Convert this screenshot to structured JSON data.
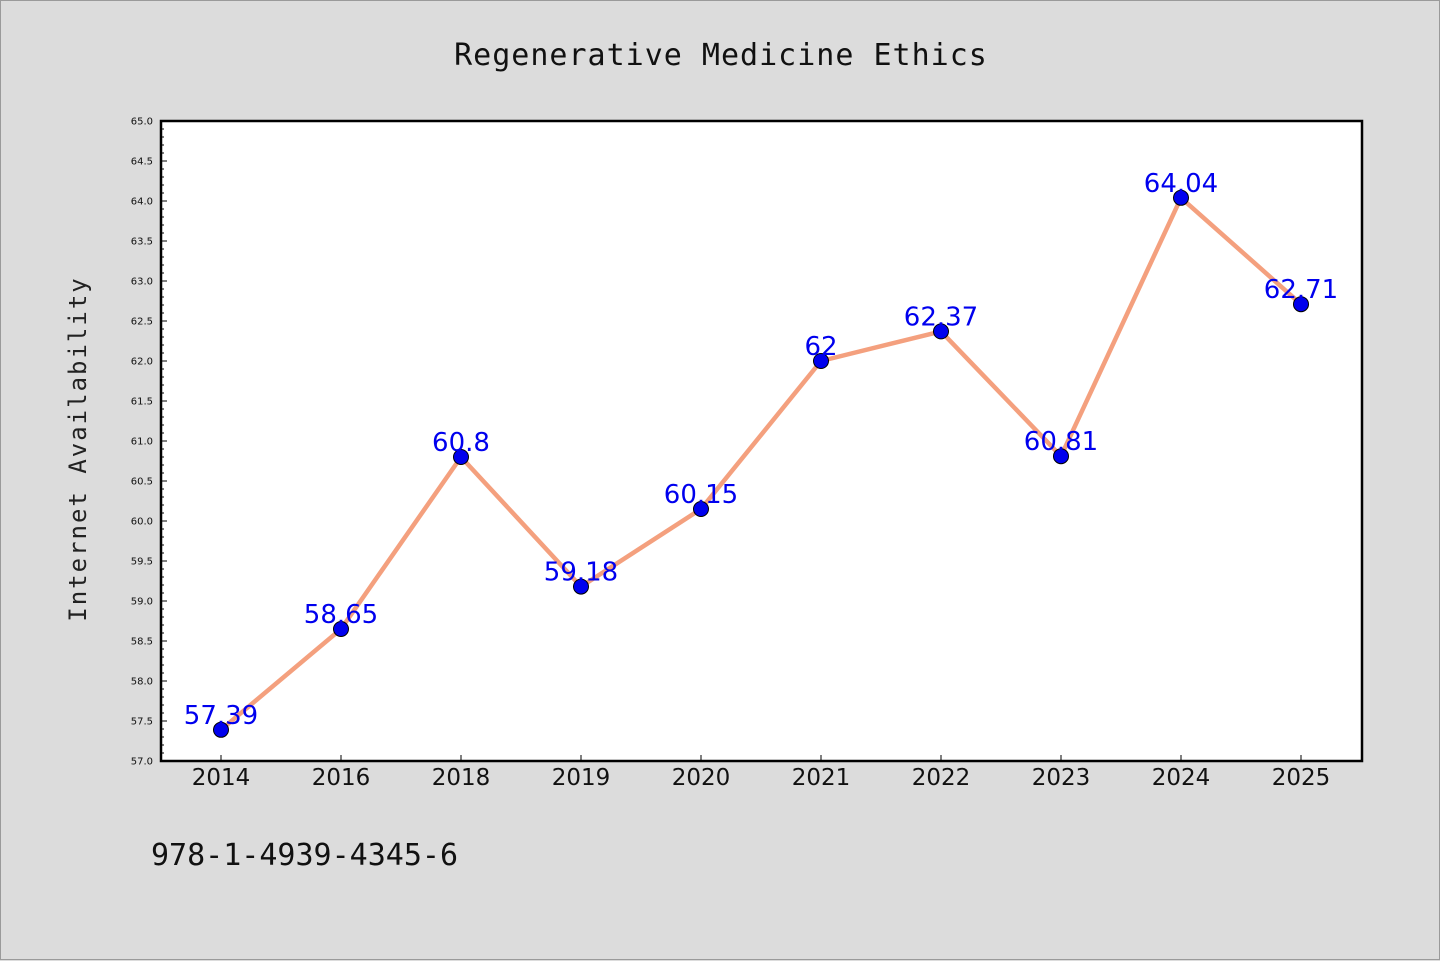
{
  "chart_data": {
    "type": "line",
    "title": "Regenerative Medicine Ethics",
    "xlabel": "",
    "ylabel": "Internet Availability",
    "categories": [
      "2014",
      "2016",
      "2018",
      "2019",
      "2020",
      "2021",
      "2022",
      "2023",
      "2024",
      "2025"
    ],
    "series": [
      {
        "values": [
          57.39,
          58.65,
          60.8,
          59.18,
          60.15,
          62,
          62.37,
          60.81,
          64.04,
          62.71
        ],
        "data_labels": [
          "57.39",
          "58.65",
          "60.8",
          "59.18",
          "60.15",
          "62",
          "62.37",
          "60.81",
          "64.04",
          "62.71"
        ],
        "line_color": "#f4a07e",
        "marker_color": "#0000ee"
      }
    ],
    "ylim": [
      57.0,
      65.0
    ],
    "yticks": [
      "57.0",
      "57.5",
      "58.0",
      "58.5",
      "59.0",
      "59.5",
      "60.0",
      "60.5",
      "61.0",
      "61.5",
      "62.0",
      "62.5",
      "63.0",
      "63.5",
      "64.0",
      "64.5",
      "65.0"
    ],
    "grid": false,
    "legend": "none"
  },
  "footnote": "978-1-4939-4345-6",
  "colors": {
    "background": "#dcdcdc",
    "plot_background": "#ffffff"
  }
}
